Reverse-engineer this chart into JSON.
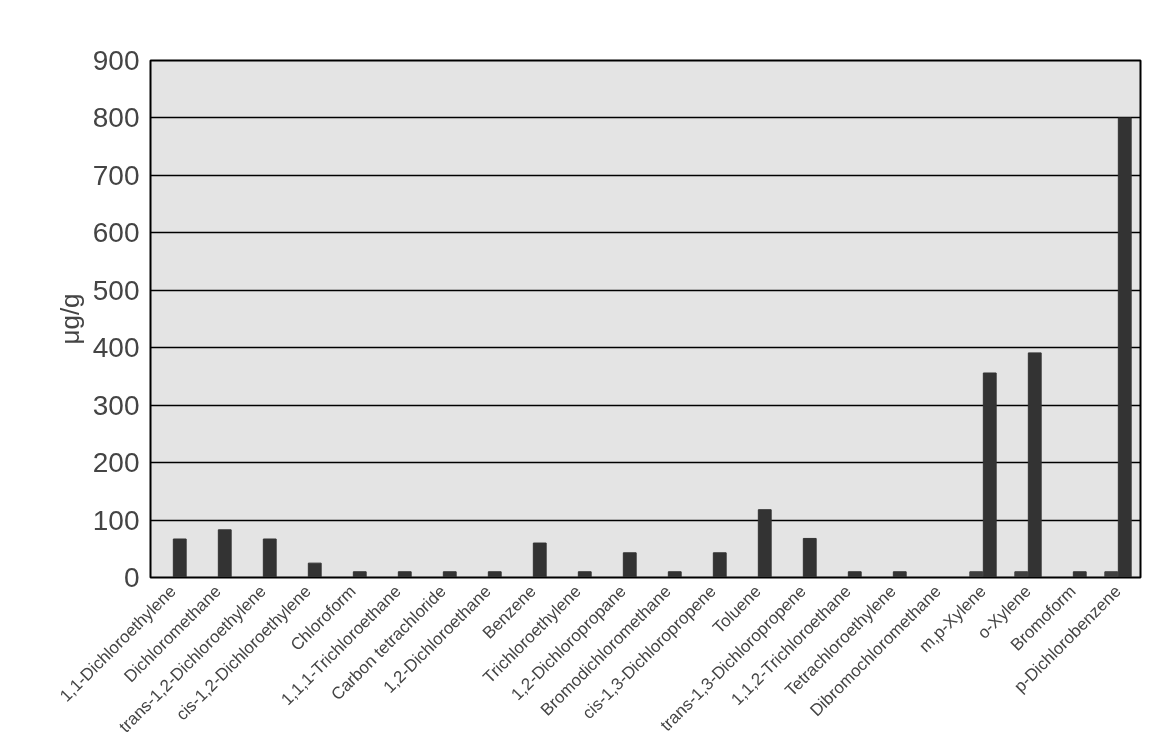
{
  "chart_data": {
    "type": "bar",
    "ylabel": "μg/g",
    "categories": [
      "1,1-Dichloroethylene",
      "Dichloromethane",
      "trans-1,2-Dichloroethylene",
      "cis-1,2-Dichloroethylene",
      "Chloroform",
      "1,1,1-Trichloroethane",
      "Carbon tetrachloride",
      "1,2-Dichloroethane",
      "Benzene",
      "Trichloroethylene",
      "1,2-Dichloropropane",
      "Bromodichloromethane",
      "cis-1,3-Dichloropropene",
      "Toluene",
      "trans-1,3-Dichloropropene",
      "1,1,2-Trichloroethane",
      "Tetrachloroethylene",
      "Dibromochloromethane",
      "m,p-Xylene",
      "o-Xylene",
      "Bromoform",
      "p-Dichlorobenzene"
    ],
    "series": [
      {
        "color": "#404040",
        "values": [
          0,
          0,
          0,
          0,
          0,
          0,
          0,
          0,
          0,
          0,
          0,
          0,
          0,
          0,
          0,
          0,
          0,
          0,
          10,
          10,
          0,
          10
        ]
      },
      {
        "color": "#333333",
        "values": [
          67,
          83,
          67,
          25,
          10,
          10,
          10,
          10,
          60,
          10,
          43,
          10,
          43,
          118,
          68,
          10,
          10,
          0,
          356,
          391,
          10,
          800
        ]
      }
    ],
    "ylim": [
      0,
      900
    ],
    "yticks": [
      0,
      100,
      200,
      300,
      400,
      500,
      600,
      700,
      800,
      900
    ],
    "grid": "y"
  }
}
